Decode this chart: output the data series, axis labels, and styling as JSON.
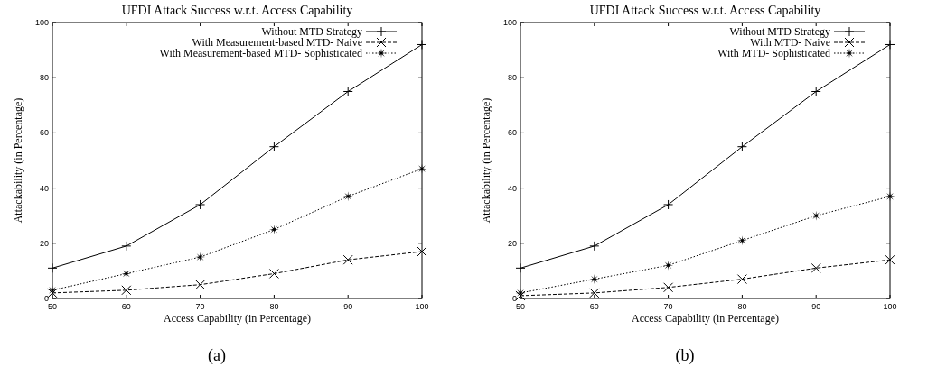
{
  "chart_data": [
    {
      "type": "line",
      "title": "UFDI Attack Success w.r.t. Access Capability",
      "xlabel": "Access Capability (in Percentage)",
      "ylabel": "Attackability (in Percentage)",
      "annotations": [
        "(a)"
      ],
      "x": [
        50,
        60,
        70,
        80,
        90,
        100
      ],
      "xlim": [
        50,
        100
      ],
      "xticks": [
        50,
        60,
        70,
        80,
        90,
        100
      ],
      "ylim": [
        0,
        100
      ],
      "yticks": [
        0,
        20,
        40,
        60,
        80,
        100
      ],
      "grid": false,
      "legend": "top right",
      "series": [
        {
          "name": "Without MTD Strategy",
          "color": "#000000",
          "marker": "plus",
          "line_style": "solid",
          "values": [
            11,
            19,
            34,
            55,
            75,
            92
          ]
        },
        {
          "name": "With Measurement-based MTD- Naive",
          "color": "#000000",
          "marker": "cross",
          "line_style": "dashed",
          "values": [
            2,
            3,
            5,
            9,
            14,
            17
          ]
        },
        {
          "name": "With Measurement-based MTD- Sophisticated",
          "color": "#000000",
          "marker": "star",
          "line_style": "dotted",
          "values": [
            3,
            9,
            15,
            25,
            37,
            47
          ]
        }
      ]
    },
    {
      "type": "line",
      "title": "UFDI Attack Success w.r.t. Access Capability",
      "xlabel": "Access Capability (in Percentage)",
      "ylabel": "Attackability (in Percentage)",
      "annotations": [
        "(b)"
      ],
      "x": [
        50,
        60,
        70,
        80,
        90,
        100
      ],
      "xlim": [
        50,
        100
      ],
      "xticks": [
        50,
        60,
        70,
        80,
        90,
        100
      ],
      "ylim": [
        0,
        100
      ],
      "yticks": [
        0,
        20,
        40,
        60,
        80,
        100
      ],
      "grid": false,
      "legend": "top right",
      "series": [
        {
          "name": "Without MTD Strategy",
          "color": "#000000",
          "marker": "plus",
          "line_style": "solid",
          "values": [
            11,
            19,
            34,
            55,
            75,
            92
          ]
        },
        {
          "name": "With MTD- Naive",
          "color": "#000000",
          "marker": "cross",
          "line_style": "dashed",
          "values": [
            1,
            2,
            4,
            7,
            11,
            14
          ]
        },
        {
          "name": "With MTD- Sophisticated",
          "color": "#000000",
          "marker": "star",
          "line_style": "dotted",
          "values": [
            2,
            7,
            12,
            21,
            30,
            37
          ]
        }
      ]
    }
  ]
}
